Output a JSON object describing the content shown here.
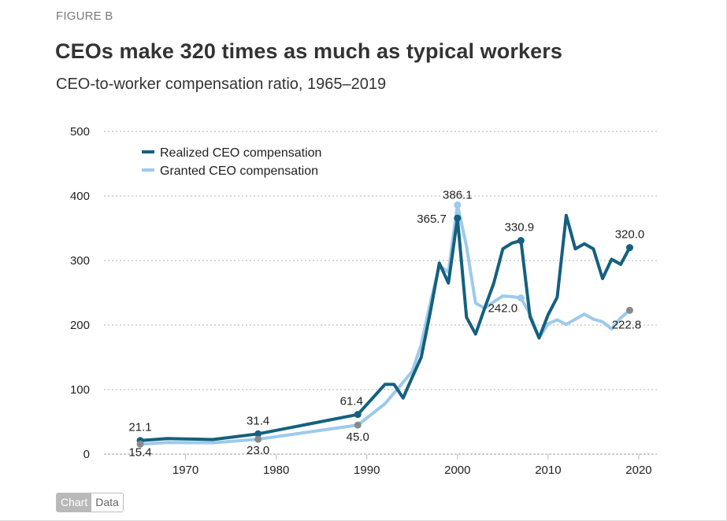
{
  "figure_label": "FIGURE B",
  "title": "CEOs make 320 times as much as typical workers",
  "subtitle": "CEO-to-worker compensation ratio, 1965–2019",
  "toggle": {
    "chart_label": "Chart",
    "data_label": "Data",
    "active": "Chart"
  },
  "colors": {
    "realized": "#14607f",
    "granted": "#9dcaeb",
    "marker_gray": "#8a8a8a",
    "grid": "#d9d9d9"
  },
  "chart_data": {
    "type": "line",
    "title": "CEOs make 320 times as much as typical workers",
    "subtitle": "CEO-to-worker compensation ratio, 1965–2019",
    "xlabel": "",
    "ylabel": "",
    "xlim": [
      1961,
      2022
    ],
    "ylim": [
      0,
      500
    ],
    "x_ticks": [
      1970,
      1980,
      1990,
      2000,
      2010,
      2020
    ],
    "y_ticks": [
      0,
      100,
      200,
      300,
      400,
      500
    ],
    "grid": "horizontal-dotted",
    "legend": {
      "position": "top-left",
      "entries": [
        "Realized CEO compensation",
        "Granted CEO compensation"
      ]
    },
    "series": [
      {
        "name": "Realized CEO compensation",
        "x": [
          1965,
          1968,
          1973,
          1978,
          1989,
          1992,
          1993,
          1994,
          1995,
          1996,
          1997,
          1998,
          1999,
          2000,
          2001,
          2002,
          2003,
          2004,
          2005,
          2006,
          2007,
          2008,
          2009,
          2010,
          2011,
          2012,
          2013,
          2014,
          2015,
          2016,
          2017,
          2018,
          2019
        ],
        "values": [
          21.1,
          24.0,
          22.5,
          31.4,
          61.4,
          108.0,
          108.0,
          87.0,
          119.0,
          150.0,
          220.0,
          296.0,
          265.0,
          365.7,
          212.0,
          186.0,
          226.0,
          265.0,
          318.0,
          327.0,
          330.9,
          213.0,
          180.0,
          216.0,
          243.0,
          370.0,
          318.0,
          326.0,
          318.0,
          272.0,
          302.0,
          294.0,
          320.0
        ]
      },
      {
        "name": "Granted CEO compensation",
        "x": [
          1965,
          1968,
          1973,
          1978,
          1989,
          1992,
          1995,
          1996,
          1997,
          1998,
          1999,
          2000,
          2001,
          2002,
          2003,
          2004,
          2005,
          2006,
          2007,
          2008,
          2009,
          2010,
          2011,
          2012,
          2013,
          2014,
          2015,
          2016,
          2017,
          2018,
          2019
        ],
        "values": [
          15.4,
          18.0,
          17.5,
          23.0,
          45.0,
          78.0,
          128.0,
          170.0,
          234.0,
          292.0,
          282.0,
          386.1,
          322.0,
          234.0,
          226.0,
          236.0,
          245.0,
          244.0,
          242.0,
          217.0,
          180.0,
          202.0,
          208.0,
          201.0,
          209.0,
          217.0,
          209.0,
          205.0,
          194.0,
          211.0,
          222.8
        ]
      }
    ],
    "annotations": [
      {
        "series": "Realized CEO compensation",
        "x": 1965,
        "label": "21.1",
        "marker": true
      },
      {
        "series": "Granted CEO compensation",
        "x": 1965,
        "label": "15.4",
        "marker": true
      },
      {
        "series": "Realized CEO compensation",
        "x": 1978,
        "label": "31.4",
        "marker": true
      },
      {
        "series": "Granted CEO compensation",
        "x": 1978,
        "label": "23.0",
        "marker": true
      },
      {
        "series": "Realized CEO compensation",
        "x": 1989,
        "label": "61.4",
        "marker": true
      },
      {
        "series": "Granted CEO compensation",
        "x": 1989,
        "label": "45.0",
        "marker": true
      },
      {
        "series": "Realized CEO compensation",
        "x": 2000,
        "label": "365.7",
        "marker": true
      },
      {
        "series": "Granted CEO compensation",
        "x": 2000,
        "label": "386.1",
        "marker": true
      },
      {
        "series": "Realized CEO compensation",
        "x": 2007,
        "label": "330.9",
        "marker": true
      },
      {
        "series": "Granted CEO compensation",
        "x": 2007,
        "label": "242.0",
        "marker": true
      },
      {
        "series": "Realized CEO compensation",
        "x": 2019,
        "label": "320.0",
        "marker": true
      },
      {
        "series": "Granted CEO compensation",
        "x": 2019,
        "label": "222.8",
        "marker": true
      }
    ]
  }
}
